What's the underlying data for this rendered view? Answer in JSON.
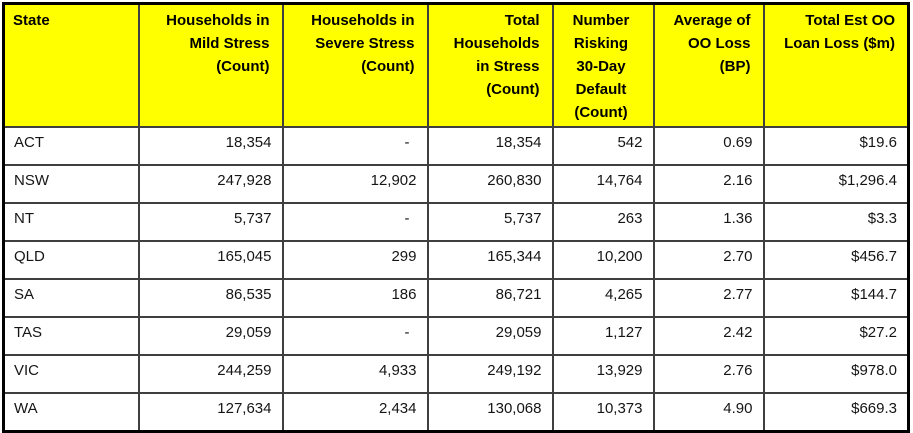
{
  "colors": {
    "header_bg": "#FFFF00",
    "header_text": "#000000",
    "grid_line": "#3F3F3F",
    "outer_border": "#000000",
    "cell_bg": "#FFFFFF",
    "cell_text": "#151515"
  },
  "chart_data": {
    "type": "table",
    "columns": [
      {
        "id": "state",
        "label": "State",
        "align": "left"
      },
      {
        "id": "households-mild-stress",
        "label": "Households in\nMild Stress\n(Count)",
        "align": "right"
      },
      {
        "id": "households-severe-stress",
        "label": "Households in\nSevere Stress\n(Count)",
        "align": "right"
      },
      {
        "id": "total-households-in-stress",
        "label": "Total\nHouseholds\nin Stress\n(Count)",
        "align": "right"
      },
      {
        "id": "number-risking-30-day-default",
        "label": "Number\nRisking\n30-Day\nDefault\n(Count)",
        "align": "center"
      },
      {
        "id": "average-oo-loss-bp",
        "label": "Average of\nOO Loss\n(BP)",
        "align": "right"
      },
      {
        "id": "total-est-oo-loan-loss",
        "label": "Total Est OO\nLoan Loss ($m)",
        "align": "right"
      }
    ],
    "rows": [
      [
        "ACT",
        "18,354",
        "-",
        "18,354",
        "542",
        "0.69",
        "$19.6"
      ],
      [
        "NSW",
        "247,928",
        "12,902",
        "260,830",
        "14,764",
        "2.16",
        "$1,296.4"
      ],
      [
        "NT",
        "5,737",
        "-",
        "5,737",
        "263",
        "1.36",
        "$3.3"
      ],
      [
        "QLD",
        "165,045",
        "299",
        "165,344",
        "10,200",
        "2.70",
        "$456.7"
      ],
      [
        "SA",
        "86,535",
        "186",
        "86,721",
        "4,265",
        "2.77",
        "$144.7"
      ],
      [
        "TAS",
        "29,059",
        "-",
        "29,059",
        "1,127",
        "2.42",
        "$27.2"
      ],
      [
        "VIC",
        "244,259",
        "4,933",
        "249,192",
        "13,929",
        "2.76",
        "$978.0"
      ],
      [
        "WA",
        "127,634",
        "2,434",
        "130,068",
        "10,373",
        "4.90",
        "$669.3"
      ]
    ]
  }
}
